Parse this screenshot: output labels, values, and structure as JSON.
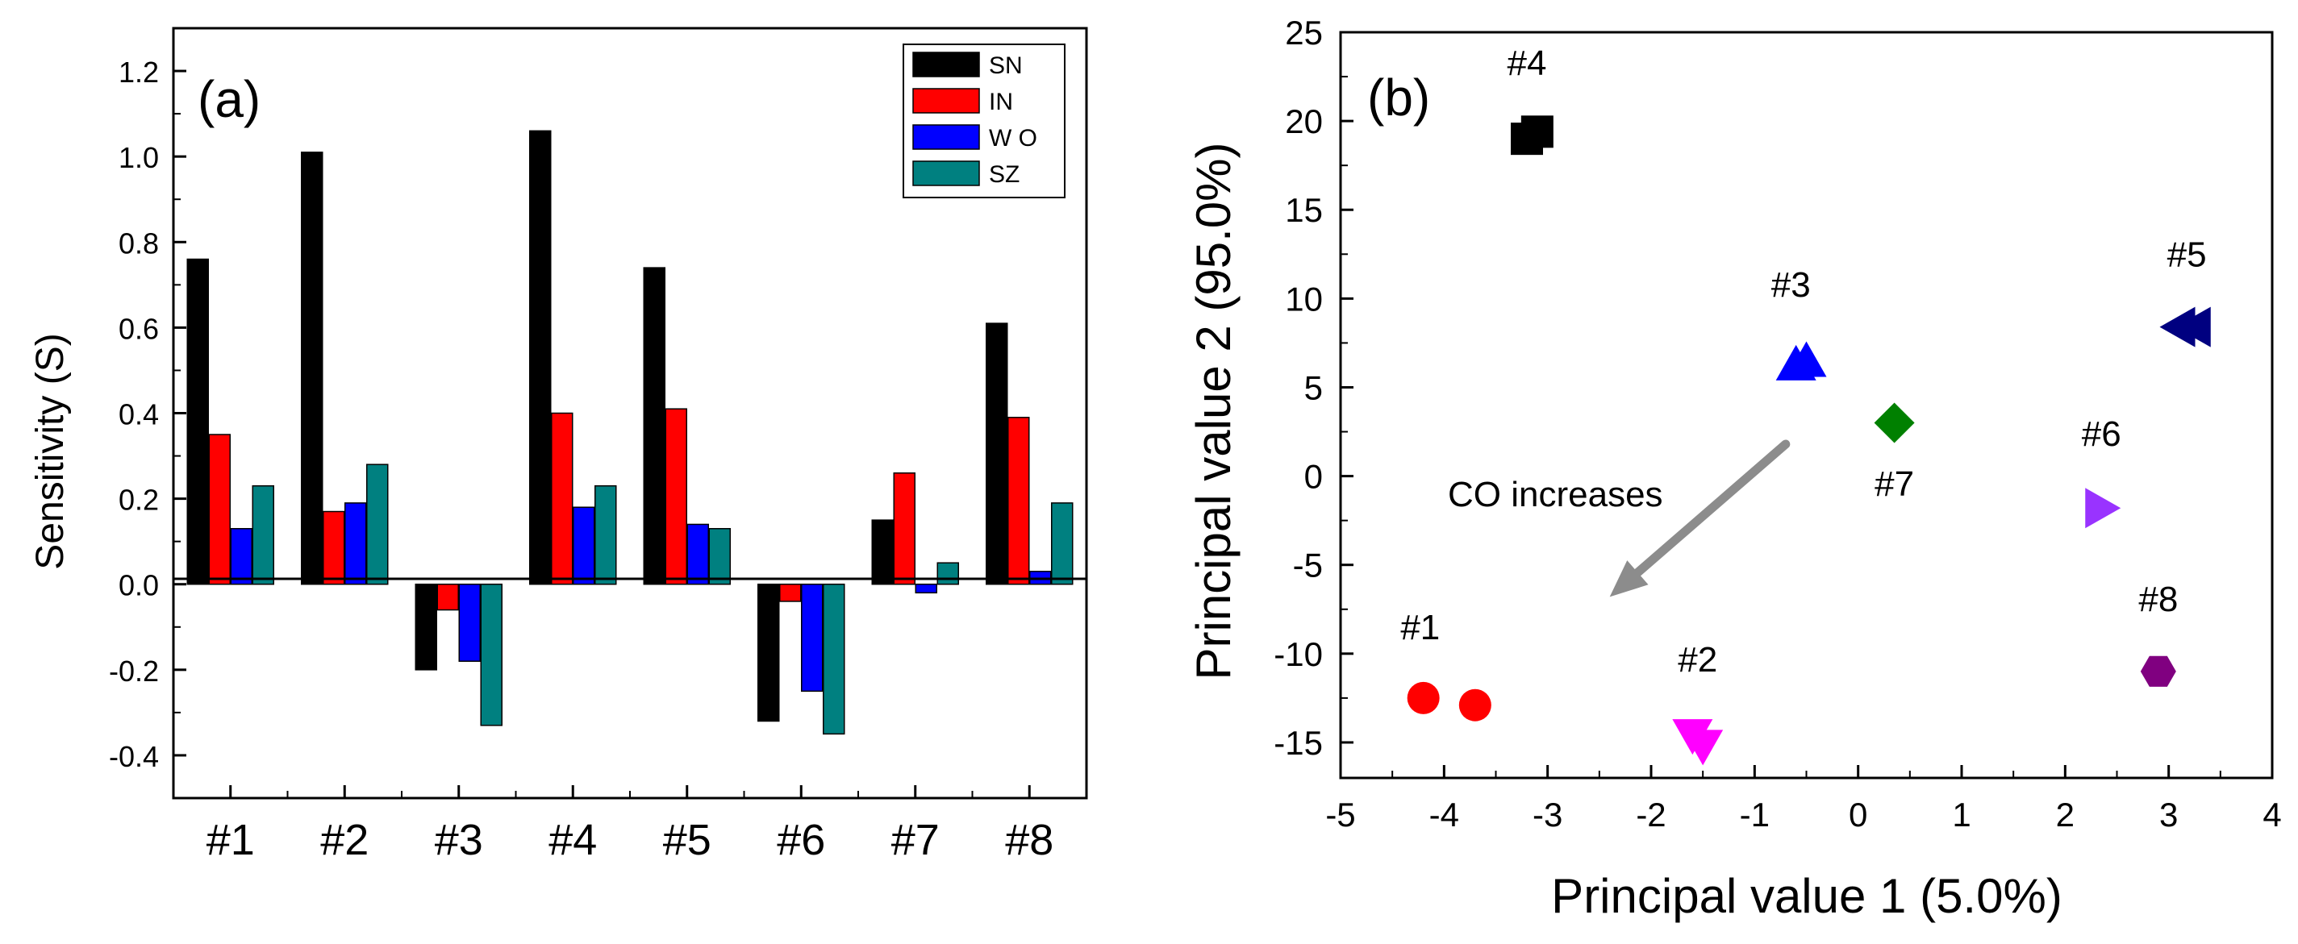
{
  "colors": {
    "SN": "#000000",
    "IN": "#ff0000",
    "WO": "#0000ff",
    "SZ": "#008080",
    "arrow": "#8c8c8c"
  },
  "chart_data": [
    {
      "type": "bar",
      "panel_label": "(a)",
      "title": "",
      "xlabel": "",
      "ylabel": "Sensitivity (S)",
      "ylim": [
        -0.5,
        1.3
      ],
      "yticks": [
        "-0.4",
        "-0.2",
        "0.0",
        "0.2",
        "0.4",
        "0.6",
        "0.8",
        "1.0",
        "1.2"
      ],
      "categories": [
        "#1",
        "#2",
        "#3",
        "#4",
        "#5",
        "#6",
        "#7",
        "#8"
      ],
      "legend_position": "top-right",
      "series": [
        {
          "name": "SN",
          "color": "#000000",
          "values": [
            0.76,
            1.01,
            -0.2,
            1.06,
            0.74,
            -0.32,
            0.15,
            0.61
          ]
        },
        {
          "name": "IN",
          "color": "#ff0000",
          "values": [
            0.35,
            0.17,
            -0.06,
            0.4,
            0.41,
            -0.04,
            0.26,
            0.39
          ]
        },
        {
          "name": "W O",
          "color": "#0000ff",
          "values": [
            0.13,
            0.19,
            -0.18,
            0.18,
            0.14,
            -0.25,
            -0.02,
            0.03
          ]
        },
        {
          "name": "SZ",
          "color": "#008080",
          "values": [
            0.23,
            0.28,
            -0.33,
            0.23,
            0.13,
            -0.35,
            0.05,
            0.19
          ]
        }
      ]
    },
    {
      "type": "scatter",
      "panel_label": "(b)",
      "title": "",
      "xlabel": "Principal value 1 (5.0%)",
      "ylabel": "Principal value 2 (95.0%)",
      "xlim": [
        -5,
        4
      ],
      "ylim": [
        -17,
        25
      ],
      "xticks": [
        "-5",
        "-4",
        "-3",
        "-2",
        "-1",
        "0",
        "1",
        "2",
        "3",
        "4"
      ],
      "yticks": [
        "-15",
        "-10",
        "-5",
        "0",
        "5",
        "10",
        "15",
        "20",
        "25"
      ],
      "annotation": "CO increases",
      "arrow": {
        "from": [
          -0.7,
          1.8
        ],
        "to": [
          -2.4,
          -6.8
        ]
      },
      "groups": [
        {
          "label": "#1",
          "marker": "circle",
          "color": "#ff0000",
          "points": [
            [
              -4.2,
              -12.5
            ],
            [
              -3.7,
              -12.9
            ]
          ]
        },
        {
          "label": "#2",
          "marker": "triangle-down",
          "color": "#ff00ff",
          "points": [
            [
              -1.6,
              -14.6
            ],
            [
              -1.5,
              -15.2
            ]
          ]
        },
        {
          "label": "#3",
          "marker": "triangle-up",
          "color": "#0000ff",
          "points": [
            [
              -0.6,
              6.3
            ],
            [
              -0.5,
              6.5
            ]
          ]
        },
        {
          "label": "#4",
          "marker": "square",
          "color": "#000000",
          "points": [
            [
              -3.2,
              19.0
            ],
            [
              -3.1,
              19.4
            ]
          ]
        },
        {
          "label": "#5",
          "marker": "triangle-left",
          "color": "#000080",
          "points": [
            [
              3.1,
              8.4
            ],
            [
              3.25,
              8.4
            ]
          ]
        },
        {
          "label": "#6",
          "marker": "triangle-right",
          "color": "#9933ff",
          "points": [
            [
              2.35,
              -1.8
            ]
          ]
        },
        {
          "label": "#7",
          "marker": "diamond",
          "color": "#008000",
          "points": [
            [
              0.35,
              3.0
            ]
          ]
        },
        {
          "label": "#8",
          "marker": "hexagon",
          "color": "#800080",
          "points": [
            [
              2.9,
              -11.0
            ]
          ]
        }
      ]
    }
  ]
}
